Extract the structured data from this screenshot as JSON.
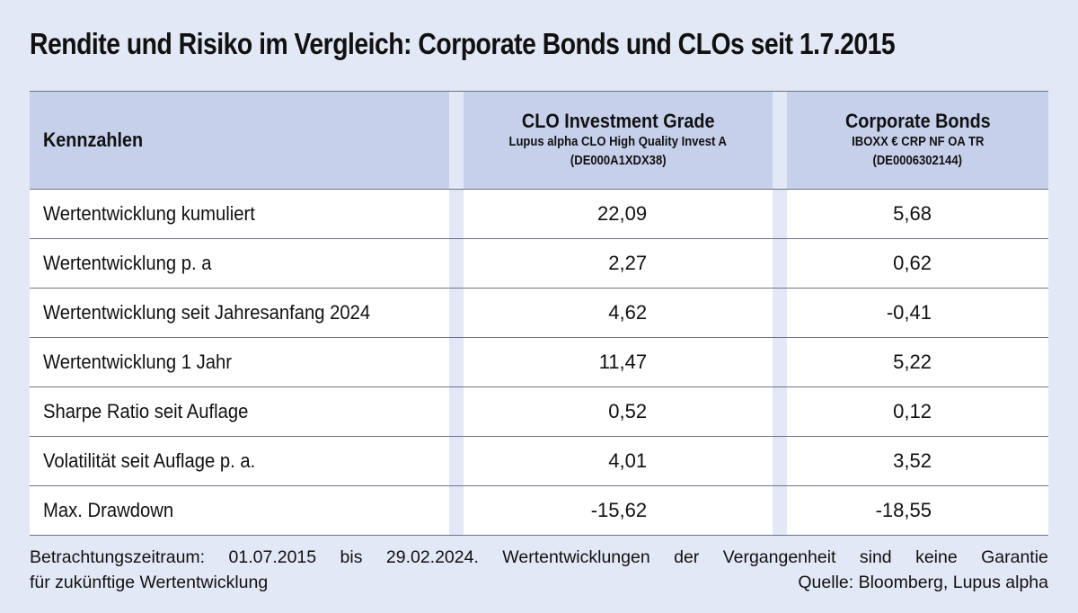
{
  "title": "Rendite und Risiko im Vergleich: Corporate Bonds und CLOs seit 1.7.2015",
  "table": {
    "header": {
      "col1": "Kennzahlen",
      "col2": {
        "main": "CLO Investment Grade",
        "sub1": "Lupus alpha CLO High Quality Invest A",
        "sub2": "(DE000A1XDX38)"
      },
      "col3": {
        "main": "Corporate Bonds",
        "sub1": "IBOXX € CRP NF OA TR",
        "sub2": "(DE0006302144)"
      }
    },
    "rows": [
      {
        "label": "Wertentwicklung kumuliert",
        "clo": "22,09",
        "corp": "5,68"
      },
      {
        "label": "Wertentwicklung p. a",
        "clo": "2,27",
        "corp": "0,62"
      },
      {
        "label": "Wertentwicklung seit Jahresanfang 2024",
        "clo": "4,62",
        "corp": "-0,41"
      },
      {
        "label": "Wertentwicklung 1 Jahr",
        "clo": "11,47",
        "corp": "5,22"
      },
      {
        "label": "Sharpe Ratio seit Auflage",
        "clo": "0,52",
        "corp": "0,12"
      },
      {
        "label": "Volatilität seit Auflage p. a.",
        "clo": "4,01",
        "corp": "3,52"
      },
      {
        "label": "Max. Drawdown",
        "clo": "-15,62",
        "corp": "-18,55"
      }
    ]
  },
  "footer": {
    "line1_words": [
      "Betrachtungszeitraum:",
      "01.07.2015",
      "bis",
      "29.02.2024.",
      "Wertentwicklungen",
      "der",
      "Vergangenheit",
      "sind",
      "keine",
      "Garantie"
    ],
    "line2_left": "für zukünftige Wertentwicklung",
    "source": "Quelle: Bloomberg, Lupus alpha"
  }
}
